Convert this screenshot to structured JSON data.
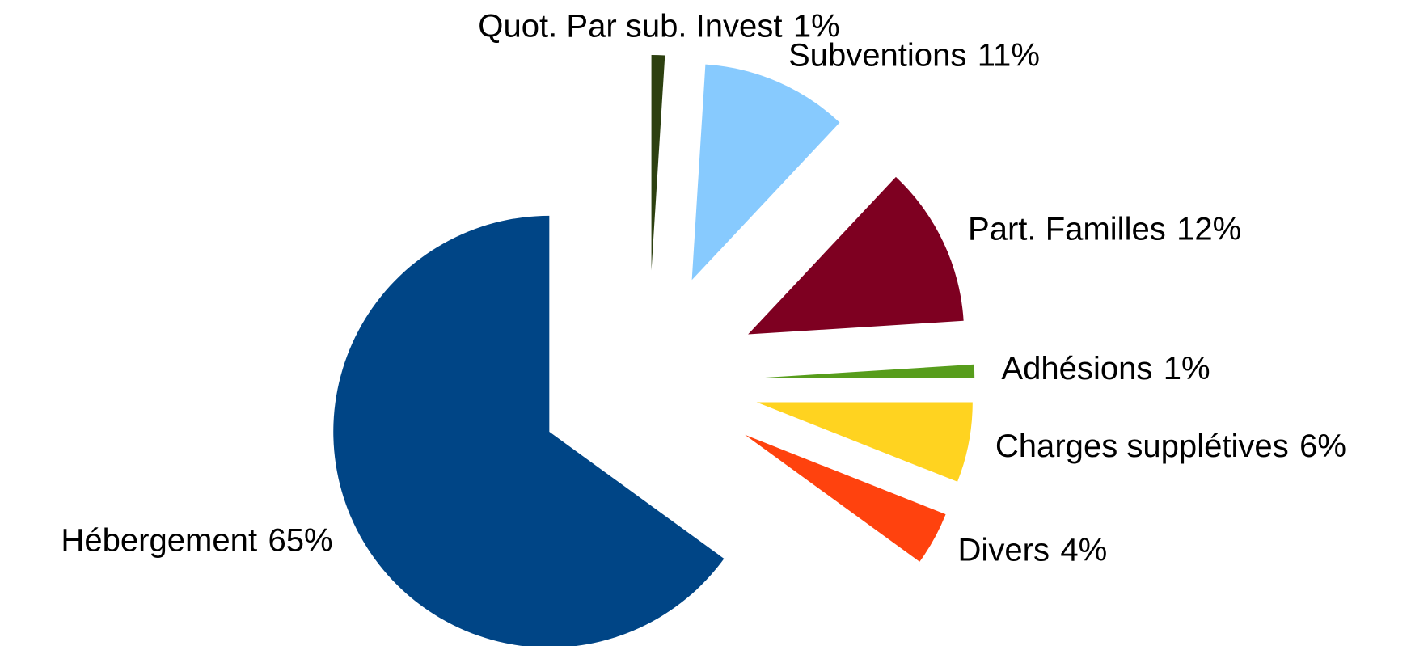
{
  "chart_data": {
    "type": "pie",
    "categories": [
      "Quot. Par sub. Invest",
      "Subventions",
      "Part. Familles",
      "Adhésions",
      "Charges supplétives",
      "Divers",
      "Hébergement"
    ],
    "values": [
      1,
      11,
      12,
      1,
      6,
      4,
      65
    ],
    "value_labels": [
      "1%",
      "11%",
      "12%",
      "1%",
      "6%",
      "4%",
      "65%"
    ],
    "colors": [
      "#2d4010",
      "#87cafe",
      "#7e0021",
      "#579d1c",
      "#ffd320",
      "#ff420e",
      "#004586"
    ],
    "exploded": true
  }
}
